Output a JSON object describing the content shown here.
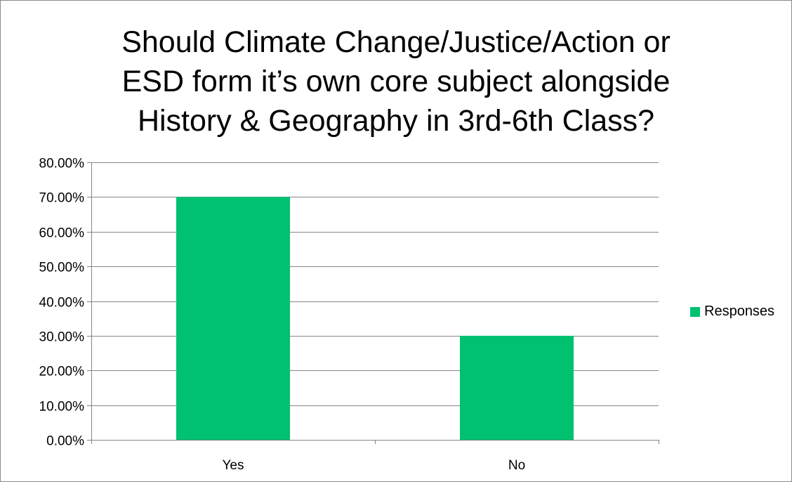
{
  "chart_data": {
    "type": "bar",
    "title_lines": [
      "Should Climate Change/Justice/Action or",
      "ESD form it’s own core subject alongside",
      "History & Geography in 3rd-6th Class?"
    ],
    "categories": [
      "Yes",
      "No"
    ],
    "series": [
      {
        "name": "Responses",
        "values": [
          0.7,
          0.3
        ],
        "color": "#00c170"
      }
    ],
    "ylim": [
      0,
      0.8
    ],
    "y_ticks": [
      {
        "value": 0.0,
        "label": "0.00%"
      },
      {
        "value": 0.1,
        "label": "10.00%"
      },
      {
        "value": 0.2,
        "label": "20.00%"
      },
      {
        "value": 0.3,
        "label": "30.00%"
      },
      {
        "value": 0.4,
        "label": "40.00%"
      },
      {
        "value": 0.5,
        "label": "50.00%"
      },
      {
        "value": 0.6,
        "label": "60.00%"
      },
      {
        "value": 0.7,
        "label": "70.00%"
      },
      {
        "value": 0.8,
        "label": "80.00%"
      }
    ],
    "grid": true,
    "legend_position": "right",
    "gridline_color": "#868686"
  }
}
